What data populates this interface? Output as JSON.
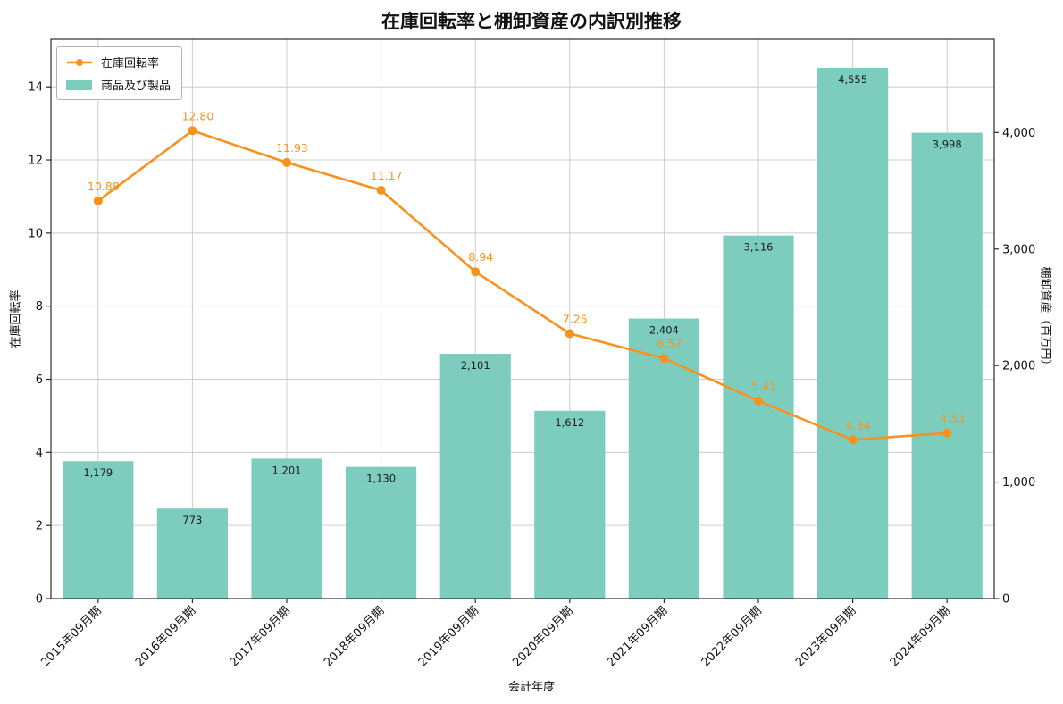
{
  "chart_data": {
    "type": "combo",
    "title": "在庫回転率と棚卸資産の内訳別推移",
    "xlabel": "会計年度",
    "ylabel_left": "在庫回転率",
    "ylabel_right": "棚卸資産（百万円）",
    "categories": [
      "2015年09月期",
      "2016年09月期",
      "2017年09月期",
      "2018年09月期",
      "2019年09月期",
      "2020年09月期",
      "2021年09月期",
      "2022年09月期",
      "2023年09月期",
      "2024年09月期"
    ],
    "series": [
      {
        "name": "在庫回転率",
        "type": "line",
        "axis": "left",
        "color": "#f7921e",
        "values": [
          10.88,
          12.8,
          11.93,
          11.17,
          8.94,
          7.25,
          6.57,
          5.41,
          4.34,
          4.53
        ]
      },
      {
        "name": "商品及び製品",
        "type": "bar",
        "axis": "right",
        "color": "#7dcdbf",
        "values": [
          1179,
          773,
          1201,
          1130,
          2101,
          1612,
          2404,
          3116,
          4555,
          3998
        ]
      }
    ],
    "left_axis": {
      "ticks": [
        0,
        2,
        4,
        6,
        8,
        10,
        12,
        14
      ],
      "max": 15.3
    },
    "right_axis": {
      "ticks": [
        0,
        1000,
        2000,
        3000,
        4000
      ],
      "max": 4800
    },
    "grid": true,
    "legend_position": "top-left",
    "colors": {
      "grid": "#cccccc",
      "frame": "#2b2b2b",
      "bar_label": "#1a1a1a",
      "tick_label": "#111111"
    }
  }
}
